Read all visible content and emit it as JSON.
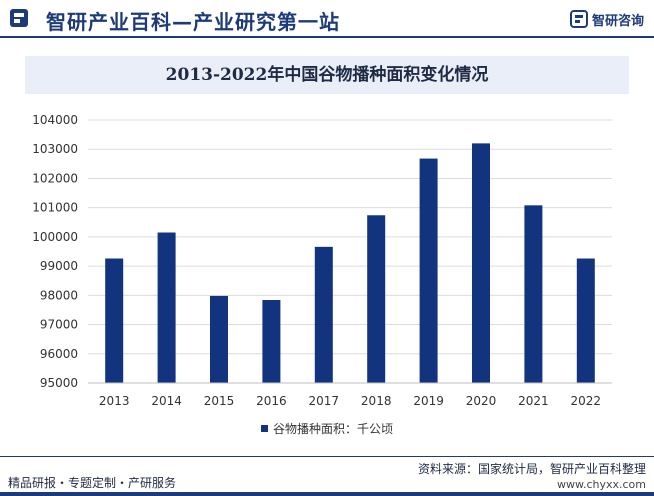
{
  "header": {
    "title": "智研产业百科—产业研究第一站",
    "brand": "智研咨询"
  },
  "chart_data": {
    "type": "bar",
    "title": "2013-2022年中国谷物播种面积变化情况",
    "categories": [
      "2013",
      "2014",
      "2015",
      "2016",
      "2017",
      "2018",
      "2019",
      "2020",
      "2021",
      "2022"
    ],
    "series": [
      {
        "name": "谷物播种面积：千公顷",
        "values": [
          99260,
          100150,
          97980,
          97840,
          99660,
          100740,
          102680,
          103200,
          101080,
          99260
        ]
      }
    ],
    "ylim": [
      95000,
      104000
    ],
    "yticks": [
      "95000",
      "96000",
      "97000",
      "98000",
      "99000",
      "100000",
      "101000",
      "102000",
      "103000",
      "104000"
    ],
    "grid": true,
    "legend_position": "bottom",
    "bar_color": "#12347f",
    "grid_color": "#dcdcdc"
  },
  "footer": {
    "left": "精品研报・专题定制・产研服务",
    "source": "资料来源：国家统计局，智研产业百科整理",
    "url": "www.chyxx.com"
  },
  "colors": {
    "brand": "#1d3a7a",
    "title_band": "#e9eef8"
  }
}
